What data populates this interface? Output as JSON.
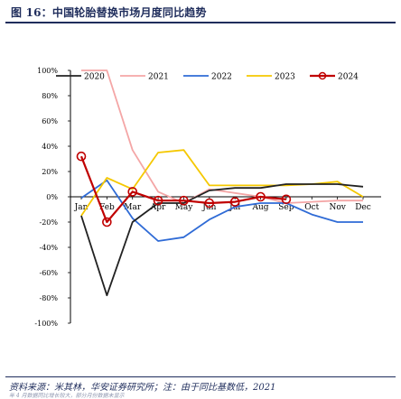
{
  "header": {
    "title": "图 16：中国轮胎替换市场月度同比趋势"
  },
  "footer": {
    "source": "资料来源：米其林，华安证券研究所；注：由于同比基数低，2021",
    "note": "年 4 月数据同比增长较大，部分月份数据未显示"
  },
  "chart_data": {
    "type": "line",
    "title": "",
    "xlabel": "",
    "ylabel": "",
    "categories": [
      "Jan",
      "Feb",
      "Mar",
      "Apr",
      "May",
      "Jun",
      "Jul",
      "Aug",
      "Sep",
      "Oct",
      "Nov",
      "Dec"
    ],
    "ylim": [
      -100,
      100
    ],
    "yticks": [
      100,
      80,
      60,
      40,
      20,
      0,
      -20,
      -40,
      -60,
      -80,
      -100
    ],
    "ytick_labels": [
      "100%",
      "80%",
      "60%",
      "40%",
      "20%",
      "0%",
      "-20%",
      "-40%",
      "-60%",
      "-80%",
      "-100%"
    ],
    "legend_position": "top",
    "grid": false,
    "series": [
      {
        "name": "2020",
        "color": "#222222",
        "values": [
          -15,
          -78,
          -20,
          -5,
          -5,
          5,
          7,
          7,
          10,
          10,
          10,
          8
        ]
      },
      {
        "name": "2021",
        "color": "#f4a6a6",
        "values": [
          100,
          100,
          37,
          4,
          -5,
          6,
          3,
          0,
          -5,
          -4,
          -3,
          -3
        ]
      },
      {
        "name": "2022",
        "color": "#2f6bd6",
        "values": [
          -1,
          13,
          -17,
          -35,
          -32,
          -18,
          -8,
          -5,
          -5,
          -14,
          -20,
          -20
        ]
      },
      {
        "name": "2023",
        "color": "#f5c800",
        "values": [
          -15,
          15,
          6,
          35,
          37,
          9,
          9,
          9,
          9,
          10,
          12,
          0
        ]
      },
      {
        "name": "2024",
        "color": "#c00000",
        "values": [
          32,
          -20,
          4,
          -3,
          -3,
          -5,
          -4,
          0,
          -2,
          null,
          null,
          null
        ]
      }
    ]
  }
}
